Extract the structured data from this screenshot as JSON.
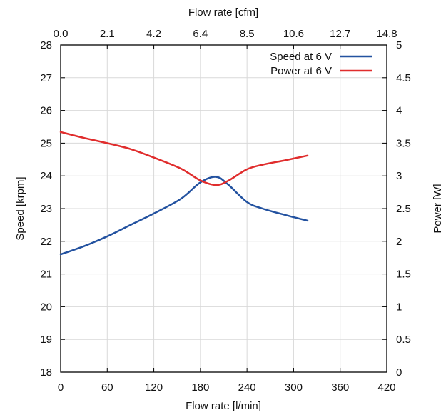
{
  "chart_data": {
    "type": "line",
    "x_label": "Flow rate [l/min]",
    "x_range": [
      0,
      420
    ],
    "x_ticks": [
      0,
      60,
      120,
      180,
      240,
      300,
      360,
      420
    ],
    "x_tick_labels": [
      "0",
      "60",
      "120",
      "180",
      "240",
      "300",
      "360",
      "420"
    ],
    "x2_label": "Flow rate [cfm]",
    "x2_tick_labels": [
      "0.0",
      "2.1",
      "4.2",
      "6.4",
      "8.5",
      "10.6",
      "12.7",
      "14.8"
    ],
    "y_label": "Speed [krpm]",
    "y_range": [
      18,
      28
    ],
    "y_ticks": [
      18,
      19,
      20,
      21,
      22,
      23,
      24,
      25,
      26,
      27,
      28
    ],
    "y_tick_labels": [
      "18",
      "19",
      "20",
      "21",
      "22",
      "23",
      "24",
      "25",
      "26",
      "27",
      "28"
    ],
    "y2_label": "Power [W]",
    "y2_range": [
      0,
      5
    ],
    "y2_ticks": [
      0,
      0.5,
      1,
      1.5,
      2,
      2.5,
      3,
      3.5,
      4,
      4.5,
      5
    ],
    "y2_tick_labels": [
      "0",
      "0.5",
      "1",
      "1.5",
      "2",
      "2.5",
      "3",
      "3.5",
      "4",
      "4.5",
      "5"
    ],
    "grid": true,
    "legend_position": "top-right",
    "series": [
      {
        "name": "Speed at 6 V",
        "axis": "left",
        "color": "#2352a0",
        "x": [
          0,
          30,
          60,
          90,
          120,
          155,
          180,
          200,
          215,
          240,
          260,
          290,
          318
        ],
        "y": [
          21.6,
          21.85,
          22.15,
          22.5,
          22.85,
          23.3,
          23.8,
          23.97,
          23.75,
          23.2,
          23.0,
          22.8,
          22.63
        ]
      },
      {
        "name": "Power at 6 V",
        "axis": "right",
        "color": "#e02d2d",
        "x": [
          0,
          30,
          60,
          90,
          120,
          155,
          180,
          200,
          215,
          240,
          260,
          290,
          318
        ],
        "y": [
          3.67,
          3.58,
          3.5,
          3.41,
          3.28,
          3.11,
          2.93,
          2.86,
          2.92,
          3.1,
          3.17,
          3.24,
          3.31
        ]
      }
    ]
  }
}
